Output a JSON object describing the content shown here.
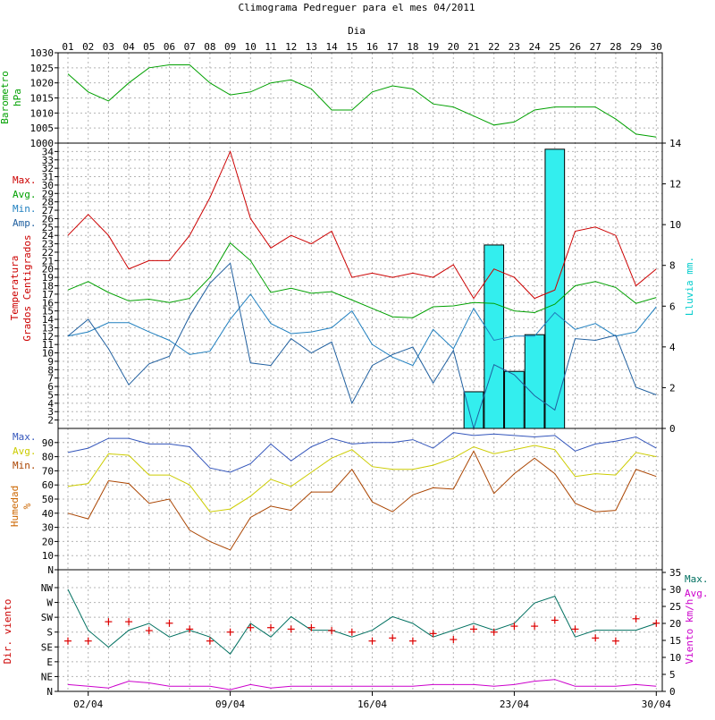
{
  "chart_data": {
    "title": "Climograma Pedreguer para el mes 04/2011",
    "x_axis_title": "Dia",
    "days": [
      "01",
      "02",
      "03",
      "04",
      "05",
      "06",
      "07",
      "08",
      "09",
      "10",
      "11",
      "12",
      "13",
      "14",
      "15",
      "16",
      "17",
      "18",
      "19",
      "20",
      "21",
      "22",
      "23",
      "24",
      "25",
      "26",
      "27",
      "28",
      "29",
      "30"
    ],
    "bottom_dates": [
      "02/04",
      "09/04",
      "16/04",
      "23/04",
      "30/04"
    ],
    "panels": [
      {
        "id": "barometro",
        "type": "line",
        "ylabel": [
          "Barometro",
          "hPa"
        ],
        "ylim": [
          1000,
          1030
        ],
        "yticks": [
          1000,
          1005,
          1010,
          1015,
          1020,
          1025,
          1030
        ],
        "ytick_labels": [
          "1000",
          "1005",
          "1010",
          "1015",
          "1020",
          "1025",
          "1030"
        ],
        "color": "#00a000",
        "series": [
          {
            "name": "",
            "color": "#00a000",
            "values": [
              1023,
              1017,
              1014,
              1020,
              1025,
              1026,
              1026,
              1020,
              1016,
              1017,
              1020,
              1021,
              1018,
              1011,
              1011,
              1017,
              1019,
              1018,
              1013,
              1012,
              1009,
              1006,
              1007,
              1011,
              1012,
              1012,
              1012,
              1008,
              1003,
              1002
            ]
          }
        ]
      },
      {
        "id": "temperatura",
        "type": "line+bar",
        "ylabel": [
          "Temperatura",
          "Grados Centigrados"
        ],
        "ylabel_color": "#cc0000",
        "ylim": [
          1,
          35
        ],
        "yticks": [
          2,
          3,
          4,
          5,
          6,
          7,
          8,
          9,
          10,
          11,
          12,
          13,
          14,
          15,
          16,
          17,
          18,
          19,
          20,
          21,
          22,
          23,
          24,
          25,
          26,
          27,
          28,
          29,
          30,
          31,
          32,
          33,
          34
        ],
        "ytick_labels": [
          "2",
          "3",
          "4",
          "5",
          "6",
          "7",
          "8",
          "9",
          "10",
          "11",
          "12",
          "13",
          "14",
          "15",
          "16",
          "17",
          "18",
          "19",
          "20",
          "21",
          "22",
          "23",
          "24",
          "25",
          "26",
          "27",
          "28",
          "29",
          "30",
          "31",
          "32",
          "33",
          "34"
        ],
        "legend": [
          {
            "label": "Max.",
            "color": "#cc0000"
          },
          {
            "label": "Avg.",
            "color": "#00a000"
          },
          {
            "label": "Min.",
            "color": "#1f7fbf"
          },
          {
            "label": "Amp.",
            "color": "#1f5f9f"
          }
        ],
        "series": [
          {
            "name": "Max.",
            "color": "#cc0000",
            "values": [
              24,
              26.5,
              24,
              20,
              21,
              21,
              24,
              28.5,
              34,
              26,
              22.5,
              24,
              23,
              24.5,
              19,
              19.5,
              19,
              19.5,
              19,
              20.5,
              16.5,
              20,
              19,
              16.5,
              17.5,
              24.5,
              25,
              24,
              18,
              20
            ]
          },
          {
            "name": "Avg.",
            "color": "#00a000",
            "values": [
              17.5,
              18.5,
              17.2,
              16.2,
              16.4,
              16,
              16.5,
              19,
              23.1,
              21,
              17.2,
              17.7,
              17.1,
              17.3,
              16.3,
              15.3,
              14.3,
              14.2,
              15.5,
              15.6,
              16,
              15.9,
              15,
              14.8,
              15.8,
              18,
              18.5,
              17.8,
              15.9,
              16.6
            ]
          },
          {
            "name": "Min.",
            "color": "#1f7fbf",
            "values": [
              12,
              12.5,
              13.6,
              13.6,
              12.5,
              11.5,
              9.8,
              10.2,
              14,
              17,
              13.5,
              12.3,
              12.5,
              13,
              15,
              11,
              9.5,
              8.5,
              12.8,
              10.5,
              15.3,
              11.5,
              12,
              12,
              14.8,
              12.8,
              13.5,
              12,
              12.5,
              15.5
            ]
          },
          {
            "name": "Amp.",
            "color": "#1f5f9f",
            "values": [
              12,
              14,
              10.5,
              6.2,
              8.7,
              9.6,
              14.4,
              18.3,
              20.7,
              8.8,
              8.5,
              11.7,
              10,
              11.3,
              4,
              8.5,
              9.8,
              10.7,
              6.4,
              10.3,
              1,
              8.6,
              7.4,
              4.9,
              3.2,
              11.7,
              11.5,
              12.1,
              5.9,
              5
            ]
          }
        ],
        "bars": {
          "name": "Lluvia mm.",
          "color": "#33eeee",
          "ylabel": "Lluvia mm.",
          "ylabel_color": "#00cccc",
          "ylim": [
            0,
            14
          ],
          "yticks": [
            0,
            2,
            4,
            6,
            8,
            10,
            12,
            14
          ],
          "ytick_labels": [
            "0",
            "2",
            "4",
            "6",
            "8",
            "10",
            "12",
            "14"
          ],
          "values": [
            0,
            0,
            0,
            0,
            0,
            0,
            0,
            0,
            0,
            0,
            0,
            0,
            0,
            0,
            0,
            0,
            0,
            0,
            0,
            0,
            1.8,
            9,
            2.8,
            4.6,
            13.7,
            0,
            0,
            0,
            0,
            0
          ]
        }
      },
      {
        "id": "humedad",
        "type": "line",
        "ylabel": [
          "Humedad",
          "%"
        ],
        "ylabel_color": "#cc6600",
        "ylim": [
          0,
          100
        ],
        "yticks": [
          0,
          10,
          20,
          30,
          40,
          50,
          60,
          70,
          80,
          90
        ],
        "ytick_labels": [
          "N",
          "10",
          "20",
          "30",
          "40",
          "50",
          "60",
          "70",
          "80",
          "90"
        ],
        "legend": [
          {
            "label": "Max.",
            "color": "#3355bb"
          },
          {
            "label": "Avg.",
            "color": "#cccc00"
          },
          {
            "label": "Min.",
            "color": "#aa4400"
          }
        ],
        "series": [
          {
            "name": "Max.",
            "color": "#3355bb",
            "values": [
              83,
              86,
              93,
              93,
              89,
              89,
              87,
              72,
              69,
              75,
              89,
              77,
              87,
              93,
              89,
              90,
              90,
              92,
              86,
              97,
              95,
              96,
              95,
              94,
              95,
              84,
              89,
              91,
              94,
              86
            ]
          },
          {
            "name": "Avg.",
            "color": "#cccc00",
            "values": [
              59,
              61,
              82,
              81,
              67,
              67,
              60,
              41,
              43,
              52,
              64,
              59,
              69,
              79,
              85,
              73,
              71,
              71,
              74,
              79,
              87,
              82,
              85,
              88,
              85,
              66,
              68,
              67,
              83,
              80
            ]
          },
          {
            "name": "Min.",
            "color": "#aa4400",
            "values": [
              40,
              36,
              63,
              61,
              47,
              50,
              28,
              20,
              14,
              37,
              45,
              42,
              55,
              55,
              71,
              48,
              41,
              53,
              58,
              57,
              84,
              54,
              68,
              79,
              68,
              47,
              41,
              42,
              71,
              66
            ]
          }
        ]
      },
      {
        "id": "viento",
        "type": "line+scatter",
        "ylabel": "Dir. viento",
        "ylabel_color": "#cc0000",
        "dir_ticks": [
          "N",
          "NE",
          "E",
          "SE",
          "S",
          "SW",
          "W",
          "NW"
        ],
        "right_ylabel": "Viento km/h",
        "right_ylabel_color": "#cc00cc",
        "right_ylim": [
          0,
          35
        ],
        "right_yticks": [
          0,
          5,
          10,
          15,
          20,
          25,
          30,
          35
        ],
        "right_ytick_labels": [
          "0",
          "5",
          "10",
          "15",
          "20",
          "25",
          "30",
          "35"
        ],
        "legend": [
          {
            "label": "Max.",
            "color": "#007060"
          },
          {
            "label": "Avg.",
            "color": "#cc00cc"
          }
        ],
        "series": [
          {
            "name": "Max.",
            "color": "#007060",
            "values": [
              30,
              18,
              13,
              18,
              20,
              16,
              18,
              16,
              11,
              20,
              16,
              22,
              18,
              18,
              16,
              18,
              22,
              20,
              16,
              18,
              20,
              18,
              20,
              26,
              28,
              16,
              18,
              18,
              18,
              20
            ]
          },
          {
            "name": "Avg.",
            "color": "#cc00cc",
            "values": [
              2,
              1.5,
              1,
              3,
              2.5,
              1.5,
              1.5,
              1.5,
              0.5,
              2,
              1,
              1.5,
              1.5,
              1.5,
              1.5,
              1.5,
              1.5,
              1.5,
              2,
              2,
              2,
              1.5,
              2,
              3,
              3.5,
              1.5,
              1.5,
              1.5,
              2,
              1.5
            ]
          },
          {
            "name": "Dir.",
            "color": "#dd0000",
            "marker": "+",
            "dir_index": [
              3.4,
              3.4,
              4.7,
              4.7,
              4.1,
              4.6,
              4.2,
              3.4,
              4.0,
              4.3,
              4.3,
              4.2,
              4.3,
              4.1,
              4.0,
              3.4,
              3.6,
              3.4,
              3.9,
              3.5,
              4.2,
              4.0,
              4.4,
              4.4,
              4.8,
              4.2,
              3.6,
              3.4,
              4.9,
              4.6
            ]
          }
        ]
      }
    ]
  }
}
